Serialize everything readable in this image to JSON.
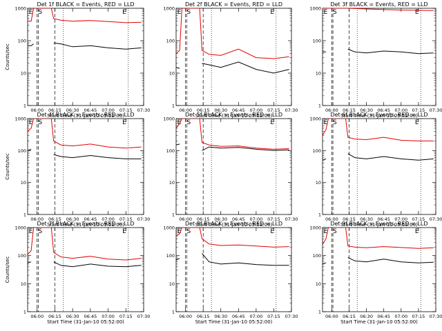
{
  "chart_data": [
    {
      "type": "line",
      "title": "Det 1f BLACK = Events, RED = LLD",
      "xlabel": "Start Time (31-Jan-10 05:52:00)",
      "ylabel": "Counts/sec",
      "yscale": "log",
      "ylim": [
        1,
        1000
      ],
      "xlim": [
        "05:52",
        "07:30"
      ],
      "x_ticks": [
        "06:00",
        "06:15",
        "06:30",
        "06:45",
        "07:00",
        "07:15",
        "07:30"
      ],
      "y_ticks": [
        "1",
        "10",
        "100",
        "1000"
      ],
      "markers": [
        "E",
        "S",
        "E"
      ],
      "series": [
        {
          "name": "BLACK = Events",
          "color": "#000000",
          "x": [
            "05:52",
            "05:55",
            "05:57",
            "05:58",
            "06:13",
            "06:14",
            "06:20",
            "06:30",
            "06:45",
            "07:00",
            "07:15",
            "07:28"
          ],
          "y": [
            70,
            70,
            80,
            null,
            null,
            85,
            80,
            65,
            70,
            60,
            55,
            60
          ]
        },
        {
          "name": "RED = LLD",
          "color": "#e00000",
          "x": [
            "05:52",
            "05:55",
            "05:57",
            "06:12",
            "06:14",
            "06:20",
            "06:30",
            "06:45",
            "07:00",
            "07:15",
            "07:28"
          ],
          "y": [
            400,
            400,
            1000,
            1000,
            480,
            430,
            400,
            420,
            390,
            360,
            370
          ]
        }
      ]
    },
    {
      "type": "line",
      "title": "Det 2f BLACK = Events, RED = LLD",
      "xlabel": "Start Time (31-Jan-10 05:52:00)",
      "ylabel": "",
      "yscale": "log",
      "ylim": [
        1,
        1000
      ],
      "xlim": [
        "05:52",
        "07:30"
      ],
      "x_ticks": [
        "06:00",
        "06:15",
        "06:30",
        "06:45",
        "07:00",
        "07:15",
        "07:30"
      ],
      "y_ticks": [
        "1",
        "10",
        "100",
        "1000"
      ],
      "markers": [
        "E",
        "S",
        "E"
      ],
      "series": [
        {
          "name": "BLACK = Events",
          "color": "#000000",
          "x": [
            "05:52",
            "05:55",
            "05:57",
            "06:13",
            "06:14",
            "06:20",
            "06:30",
            "06:45",
            "07:00",
            "07:15",
            "07:28"
          ],
          "y": [
            15,
            14,
            null,
            null,
            20,
            18,
            15,
            22,
            13,
            10,
            13
          ]
        },
        {
          "name": "RED = LLD",
          "color": "#e00000",
          "x": [
            "05:52",
            "05:55",
            "05:57",
            "06:12",
            "06:14",
            "06:20",
            "06:30",
            "06:45",
            "07:00",
            "07:15",
            "07:28"
          ],
          "y": [
            40,
            50,
            1000,
            1000,
            50,
            38,
            35,
            55,
            30,
            28,
            32
          ]
        }
      ]
    },
    {
      "type": "line",
      "title": "Det 3f BLACK = Events, RED = LLD",
      "xlabel": "Start Time (31-Jan-10 05:52:00)",
      "ylabel": "",
      "yscale": "log",
      "ylim": [
        1,
        1000
      ],
      "xlim": [
        "05:52",
        "07:30"
      ],
      "x_ticks": [
        "06:00",
        "06:15",
        "06:30",
        "06:45",
        "07:00",
        "07:15",
        "07:30"
      ],
      "y_ticks": [
        "1",
        "10",
        "100",
        "1000"
      ],
      "markers": [
        "E",
        "S",
        "E"
      ],
      "series": [
        {
          "name": "BLACK = Events",
          "color": "#000000",
          "x": [
            "05:52",
            "05:55",
            "05:57",
            "06:13",
            "06:14",
            "06:20",
            "06:30",
            "06:45",
            "07:00",
            "07:15",
            "07:28"
          ],
          "y": [
            45,
            45,
            null,
            null,
            55,
            45,
            42,
            48,
            45,
            40,
            42
          ]
        },
        {
          "name": "RED = LLD",
          "color": "#e00000",
          "x": [
            "05:52",
            "05:55",
            "05:57",
            "06:12",
            "06:14",
            "06:30",
            "07:00",
            "07:28"
          ],
          "y": [
            1000,
            1000,
            1000,
            1000,
            1000,
            950,
            880,
            850
          ]
        }
      ]
    },
    {
      "type": "line",
      "title": "Det 4f BLACK = Events, RED = LLD",
      "xlabel": "Start Time (31-Jan-10 05:52:00)",
      "ylabel": "Counts/sec",
      "yscale": "log",
      "ylim": [
        1,
        1000
      ],
      "xlim": [
        "05:52",
        "07:30"
      ],
      "x_ticks": [
        "06:00",
        "06:15",
        "06:30",
        "06:45",
        "07:00",
        "07:15",
        "07:30"
      ],
      "y_ticks": [
        "1",
        "10",
        "100",
        "1000"
      ],
      "markers": [
        "E",
        "S",
        "E"
      ],
      "series": [
        {
          "name": "BLACK = Events",
          "color": "#000000",
          "x": [
            "05:52",
            "05:55",
            "05:57",
            "06:13",
            "06:14",
            "06:20",
            "06:30",
            "06:45",
            "07:00",
            "07:15",
            "07:28"
          ],
          "y": [
            100,
            110,
            null,
            null,
            75,
            65,
            60,
            70,
            60,
            55,
            55
          ]
        },
        {
          "name": "RED = LLD",
          "color": "#e00000",
          "x": [
            "05:52",
            "05:55",
            "05:57",
            "06:12",
            "06:14",
            "06:20",
            "06:30",
            "06:45",
            "07:00",
            "07:15",
            "07:28"
          ],
          "y": [
            400,
            500,
            1000,
            1000,
            200,
            150,
            140,
            160,
            130,
            120,
            130
          ]
        }
      ]
    },
    {
      "type": "line",
      "title": "Det 5f BLACK = Events, RED = LLD",
      "xlabel": "Start Time (31-Jan-10 05:52:00)",
      "ylabel": "",
      "yscale": "log",
      "ylim": [
        1,
        1000
      ],
      "xlim": [
        "05:52",
        "07:30"
      ],
      "x_ticks": [
        "06:00",
        "06:15",
        "06:30",
        "06:45",
        "07:00",
        "07:15",
        "07:30"
      ],
      "y_ticks": [
        "1",
        "10",
        "100",
        "1000"
      ],
      "markers": [
        "E",
        "S",
        "E"
      ],
      "series": [
        {
          "name": "BLACK = Events",
          "color": "#000000",
          "x": [
            "05:52",
            "05:55",
            "05:57",
            "06:13",
            "06:14",
            "06:20",
            "06:30",
            "06:45",
            "07:00",
            "07:15",
            "07:28"
          ],
          "y": [
            150,
            160,
            null,
            null,
            100,
            130,
            120,
            125,
            110,
            100,
            105
          ]
        },
        {
          "name": "RED = LLD",
          "color": "#e00000",
          "x": [
            "05:52",
            "05:55",
            "05:57",
            "06:12",
            "06:14",
            "06:20",
            "06:30",
            "06:45",
            "07:00",
            "07:15",
            "07:28"
          ],
          "y": [
            500,
            700,
            1000,
            1000,
            180,
            150,
            135,
            140,
            120,
            110,
            115
          ]
        }
      ]
    },
    {
      "type": "line",
      "title": "Det 6f BLACK = Events, RED = LLD",
      "xlabel": "Start Time (31-Jan-10 05:52:00)",
      "ylabel": "",
      "yscale": "log",
      "ylim": [
        1,
        1000
      ],
      "xlim": [
        "05:52",
        "07:30"
      ],
      "x_ticks": [
        "06:00",
        "06:15",
        "06:30",
        "06:45",
        "07:00",
        "07:15",
        "07:30"
      ],
      "y_ticks": [
        "1",
        "10",
        "100",
        "1000"
      ],
      "markers": [
        "E",
        "S",
        "E"
      ],
      "series": [
        {
          "name": "BLACK = Events",
          "color": "#000000",
          "x": [
            "05:52",
            "05:55",
            "05:57",
            "06:13",
            "06:14",
            "06:20",
            "06:30",
            "06:45",
            "07:00",
            "07:15",
            "07:28"
          ],
          "y": [
            50,
            55,
            null,
            null,
            80,
            60,
            55,
            65,
            55,
            50,
            55
          ]
        },
        {
          "name": "RED = LLD",
          "color": "#e00000",
          "x": [
            "05:52",
            "05:55",
            "05:57",
            "06:12",
            "06:14",
            "06:20",
            "06:30",
            "06:45",
            "07:00",
            "07:15",
            "07:28"
          ],
          "y": [
            300,
            450,
            1000,
            1000,
            260,
            230,
            220,
            260,
            210,
            200,
            200
          ]
        }
      ]
    },
    {
      "type": "line",
      "title": "Det 7f BLACK = Events, RED = LLD",
      "xlabel": "Start Time (31-Jan-10 05:52:00)",
      "ylabel": "Counts/sec",
      "yscale": "log",
      "ylim": [
        1,
        1000
      ],
      "xlim": [
        "05:52",
        "07:30"
      ],
      "x_ticks": [
        "06:00",
        "06:15",
        "06:30",
        "06:45",
        "07:00",
        "07:15",
        "07:30"
      ],
      "y_ticks": [
        "1",
        "10",
        "100",
        "1000"
      ],
      "markers": [
        "E",
        "S",
        "E"
      ],
      "series": [
        {
          "name": "BLACK = Events",
          "color": "#000000",
          "x": [
            "05:52",
            "05:55",
            "05:57",
            "06:13",
            "06:14",
            "06:20",
            "06:30",
            "06:45",
            "07:00",
            "07:15",
            "07:28"
          ],
          "y": [
            55,
            60,
            null,
            null,
            60,
            45,
            40,
            50,
            42,
            40,
            45
          ]
        },
        {
          "name": "RED = LLD",
          "color": "#e00000",
          "x": [
            "05:52",
            "05:55",
            "05:57",
            "06:12",
            "06:14",
            "06:20",
            "06:30",
            "06:45",
            "07:00",
            "07:15",
            "07:28"
          ],
          "y": [
            110,
            150,
            1000,
            1000,
            130,
            90,
            80,
            95,
            75,
            70,
            80
          ]
        }
      ]
    },
    {
      "type": "line",
      "title": "Det 8f BLACK = Events, RED = LLD",
      "xlabel": "Start Time (31-Jan-10 05:52:00)",
      "ylabel": "",
      "yscale": "log",
      "ylim": [
        1,
        1000
      ],
      "xlim": [
        "05:52",
        "07:30"
      ],
      "x_ticks": [
        "06:00",
        "06:15",
        "06:30",
        "06:45",
        "07:00",
        "07:15",
        "07:30"
      ],
      "y_ticks": [
        "1",
        "10",
        "100",
        "1000"
      ],
      "markers": [
        "E",
        "S",
        "E"
      ],
      "series": [
        {
          "name": "BLACK = Events",
          "color": "#000000",
          "x": [
            "05:52",
            "05:55",
            "05:57",
            "06:13",
            "06:14",
            "06:20",
            "06:30",
            "06:45",
            "07:00",
            "07:15",
            "07:28"
          ],
          "y": [
            70,
            80,
            null,
            null,
            120,
            60,
            50,
            55,
            48,
            45,
            45
          ]
        },
        {
          "name": "RED = LLD",
          "color": "#e00000",
          "x": [
            "05:52",
            "05:55",
            "05:57",
            "06:12",
            "06:14",
            "06:20",
            "06:30",
            "06:45",
            "07:00",
            "07:15",
            "07:28"
          ],
          "y": [
            500,
            600,
            1000,
            1000,
            400,
            260,
            230,
            240,
            220,
            200,
            210
          ]
        }
      ]
    },
    {
      "type": "line",
      "title": "Det 9f BLACK = Events, RED = LLD",
      "xlabel": "Start Time (31-Jan-10 05:52:00)",
      "ylabel": "",
      "yscale": "log",
      "ylim": [
        1,
        1000
      ],
      "xlim": [
        "05:52",
        "07:30"
      ],
      "x_ticks": [
        "06:00",
        "06:15",
        "06:30",
        "06:45",
        "07:00",
        "07:15",
        "07:30"
      ],
      "y_ticks": [
        "1",
        "10",
        "100",
        "1000"
      ],
      "markers": [
        "E",
        "S",
        "E"
      ],
      "series": [
        {
          "name": "BLACK = Events",
          "color": "#000000",
          "x": [
            "05:52",
            "05:55",
            "05:57",
            "06:13",
            "06:14",
            "06:20",
            "06:30",
            "06:45",
            "07:00",
            "07:15",
            "07:28"
          ],
          "y": [
            50,
            55,
            null,
            null,
            85,
            65,
            60,
            75,
            60,
            55,
            58
          ]
        },
        {
          "name": "RED = LLD",
          "color": "#e00000",
          "x": [
            "05:52",
            "05:55",
            "05:57",
            "06:12",
            "06:14",
            "06:20",
            "06:30",
            "06:45",
            "07:00",
            "07:15",
            "07:28"
          ],
          "y": [
            250,
            400,
            1000,
            1000,
            220,
            200,
            190,
            210,
            195,
            180,
            190
          ]
        }
      ]
    }
  ]
}
